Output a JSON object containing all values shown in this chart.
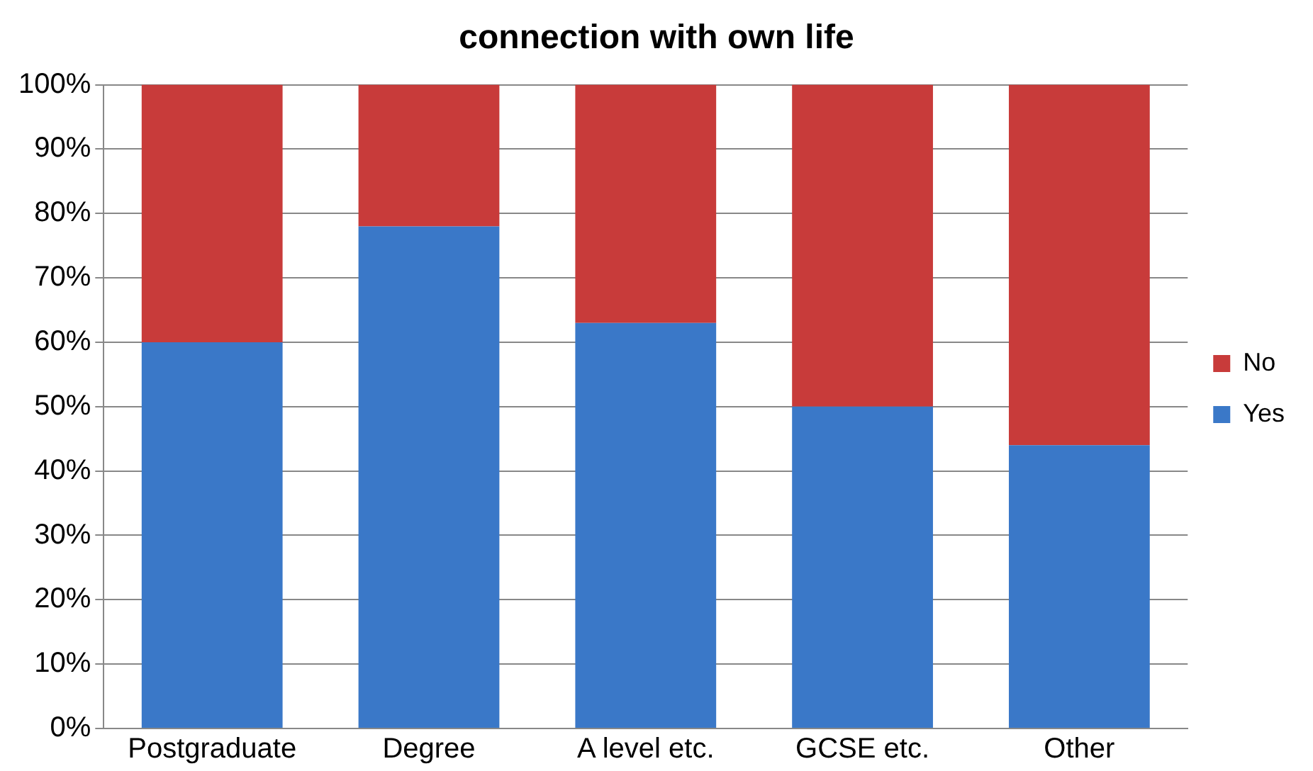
{
  "chart_data": {
    "type": "bar",
    "title": "connection with own life",
    "stacked": true,
    "categories": [
      "Postgraduate",
      "Degree",
      "A level etc.",
      "GCSE etc.",
      "Other"
    ],
    "series": [
      {
        "name": "Yes",
        "color": "#3a78c8",
        "values": [
          60,
          78,
          63,
          50,
          44
        ]
      },
      {
        "name": "No",
        "color": "#c83b3a",
        "values": [
          40,
          22,
          37,
          50,
          56
        ]
      }
    ],
    "ylim": [
      0,
      100
    ],
    "yticks": [
      {
        "value": 0,
        "label": "0%"
      },
      {
        "value": 10,
        "label": "10%"
      },
      {
        "value": 20,
        "label": "20%"
      },
      {
        "value": 30,
        "label": "30%"
      },
      {
        "value": 40,
        "label": "40%"
      },
      {
        "value": 50,
        "label": "50%"
      },
      {
        "value": 60,
        "label": "60%"
      },
      {
        "value": 70,
        "label": "70%"
      },
      {
        "value": 80,
        "label": "80%"
      },
      {
        "value": 90,
        "label": "90%"
      },
      {
        "value": 100,
        "label": "100%"
      }
    ],
    "grid": "y",
    "legend": "right"
  }
}
